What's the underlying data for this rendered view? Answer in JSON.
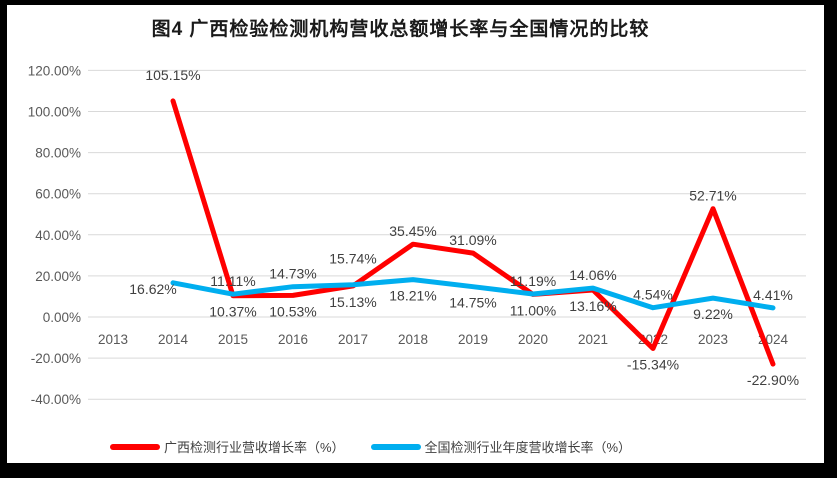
{
  "title": "图4 广西检验检测机构营收总额增长率与全国情况的比较",
  "chart_data": {
    "type": "line",
    "categories": [
      "2013",
      "2014",
      "2015",
      "2016",
      "2017",
      "2018",
      "2019",
      "2020",
      "2021",
      "2022",
      "2023",
      "2024"
    ],
    "y_axis": {
      "ticks": [
        "120.00%",
        "100.00%",
        "80.00%",
        "60.00%",
        "40.00%",
        "20.00%",
        "0.00%",
        "-20.00%",
        "-40.00%"
      ],
      "tick_values": [
        120,
        100,
        80,
        60,
        40,
        20,
        0,
        -20,
        -40
      ],
      "range": [
        -40,
        120
      ],
      "grid": true
    },
    "series": [
      {
        "name": "广西检测行业营收增长率（%）",
        "color": "#FF0000",
        "values": [
          null,
          105.15,
          10.37,
          10.53,
          15.13,
          35.45,
          31.09,
          11.0,
          13.16,
          -15.34,
          52.71,
          -22.9
        ],
        "labels": [
          "",
          "105.15%",
          "10.37%",
          "10.53%",
          "15.13%",
          "35.45%",
          "31.09%",
          "11.00%",
          "13.16%",
          "-15.34%",
          "52.71%",
          "-22.90%"
        ],
        "label_pos": [
          "",
          "above-far",
          "below",
          "below",
          "below",
          "above",
          "above",
          "below",
          "below",
          "below",
          "above",
          "below"
        ]
      },
      {
        "name": "全国检测行业年度营收增长率（%）",
        "color": "#00AEEF",
        "values": [
          null,
          16.62,
          11.11,
          14.73,
          15.74,
          18.21,
          14.75,
          11.19,
          14.06,
          4.54,
          9.22,
          4.41
        ],
        "labels": [
          "",
          "16.62%",
          "11.11%",
          "14.73%",
          "15.74%",
          "18.21%",
          "14.75%",
          "11.19%",
          "14.06%",
          "4.54%",
          "9.22%",
          "4.41%"
        ],
        "label_pos": [
          "",
          "left",
          "above",
          "above",
          "above-far",
          "below",
          "below",
          "above",
          "above",
          "above",
          "below",
          "above"
        ]
      }
    ],
    "legend_position": "bottom",
    "colors": {
      "gridline": "#D9D9D9",
      "axis_text": "#595959",
      "data_label_text": "#404040"
    }
  }
}
